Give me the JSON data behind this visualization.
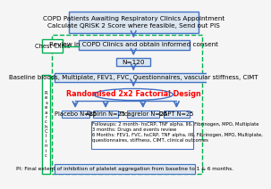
{
  "bg_color": "#f5f5f5",
  "top_box": {
    "text": "COPD Patients Awaiting Respiratory Clinics Appointment\nCalculate QRISK 2 Score where feasible, Send out PIS",
    "facecolor": "#dce6f1",
    "edgecolor": "#4472c4",
    "fontsize": 5.2
  },
  "box2": {
    "text": "Review in COPD Clinics and obtain informed consent",
    "facecolor": "#dce6f1",
    "edgecolor": "#4472c4",
    "fontsize": 5.2
  },
  "chest_clinic_box": {
    "text": "Chest Clinic",
    "facecolor": "#ffffff",
    "edgecolor": "#00b050",
    "fontsize": 4.8
  },
  "n120_box": {
    "text": "N=120",
    "facecolor": "#dce6f1",
    "edgecolor": "#4472c4",
    "fontsize": 5.2
  },
  "baseline_box": {
    "text": "Baseline bloods, Multiplate, FEV1, FVC, Questionnaires, vascular stiffness, CIMT",
    "facecolor": "#dce6f1",
    "edgecolor": "#4472c4",
    "fontsize": 5.0
  },
  "randomised_ellipse": {
    "text": "Randomised 2x2 Factorial Design",
    "facecolor": "#ffffff",
    "edgecolor": "#4472c4",
    "textcolor": "#ff0000",
    "fontsize": 5.8
  },
  "arm_boxes": [
    {
      "text": "Placebo N=25",
      "facecolor": "#dce6f1",
      "edgecolor": "#4472c4",
      "fontsize": 4.8
    },
    {
      "text": "Aspirin N=25",
      "facecolor": "#dce6f1",
      "edgecolor": "#4472c4",
      "fontsize": 4.8
    },
    {
      "text": "Ticagrelor N=25",
      "facecolor": "#dce6f1",
      "edgecolor": "#4472c4",
      "fontsize": 4.8
    },
    {
      "text": "DAPT N=25",
      "facecolor": "#dce6f1",
      "edgecolor": "#4472c4",
      "fontsize": 4.8
    }
  ],
  "followup_text": "Followups: 2 month- hsCRP, TNF alpha, Il6, Fibrinogen, MPO, Multiplate\n3 months: Drugs and events review\n6 Months: FEV1, FVC, hsCRP, TNF alpha, Il6, Fibrinogen, MPO, Multiplate,\nquestionnaires, stiffness, CIMT, clinical outcomes",
  "followup_box": {
    "facecolor": "#ffffff",
    "edgecolor": "#4472c4",
    "fontsize": 3.8
  },
  "pi_box": {
    "text": "PI: Final extent of inhibition of platelet aggregation from baseline to 1 & 6 months.",
    "facecolor": "#dce6f1",
    "edgecolor": "#4472c4",
    "fontsize": 4.2
  },
  "research_clinic_text": "R\ne\ns\ne\na\nr\nc\nh\nC\nl\ni\nn\ni\nc",
  "research_clinic_box": {
    "facecolor": "#ffffff",
    "edgecolor": "#00b050",
    "fontsize": 4.0
  },
  "arrow_color": "#4472c4",
  "green_color": "#00b050",
  "dashed_rect_color": "#00b050"
}
